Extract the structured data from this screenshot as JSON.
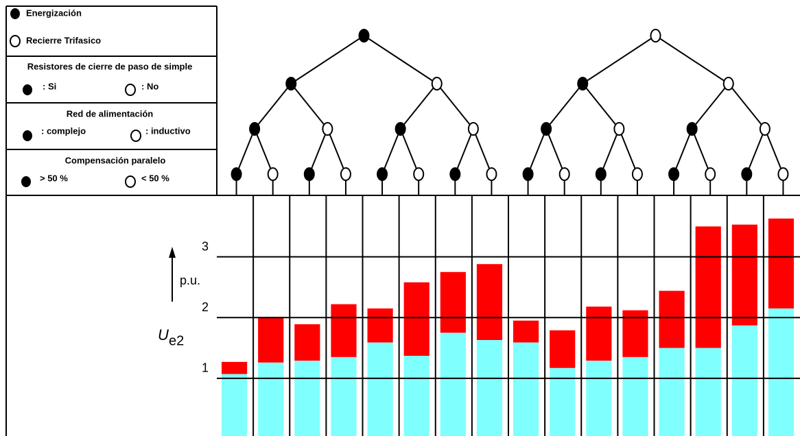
{
  "legend_top": [
    "Energización",
    "Recierre Trifasico"
  ],
  "legend_groups": [
    {
      "title": "Resistores de cierre de paso de simple",
      "filled": ": Si",
      "open": ": No"
    },
    {
      "title": "Red de alimentación",
      "filled": ": complejo",
      "open": ": inductivo"
    },
    {
      "title": "Compensación paralelo",
      "filled": "> 50 %",
      "open": "< 50 %"
    }
  ],
  "chart_data": {
    "type": "bar",
    "stacked": true,
    "ylabel": "U",
    "ylabel_sub": "e2",
    "yunit": "p.u.",
    "categories": [
      null,
      null,
      null,
      null,
      null,
      null,
      null,
      null,
      null,
      null,
      null,
      null,
      null,
      null,
      null,
      null
    ],
    "series": [
      {
        "color": "#80ffff",
        "values": [
          1.07,
          1.26,
          1.29,
          1.35,
          1.59,
          1.37,
          1.75,
          1.63,
          1.59,
          1.17,
          1.29,
          1.35,
          1.5,
          1.5,
          1.87,
          2.15
        ]
      },
      {
        "color": "#ff0000",
        "values": [
          0.2,
          0.75,
          0.6,
          0.87,
          0.56,
          1.21,
          1.0,
          1.25,
          0.36,
          0.62,
          0.89,
          0.77,
          0.94,
          2.0,
          1.66,
          1.48
        ]
      }
    ],
    "ylim": [
      0.05,
      4.0
    ],
    "yticks": [
      1,
      2,
      3
    ],
    "grid": true
  }
}
